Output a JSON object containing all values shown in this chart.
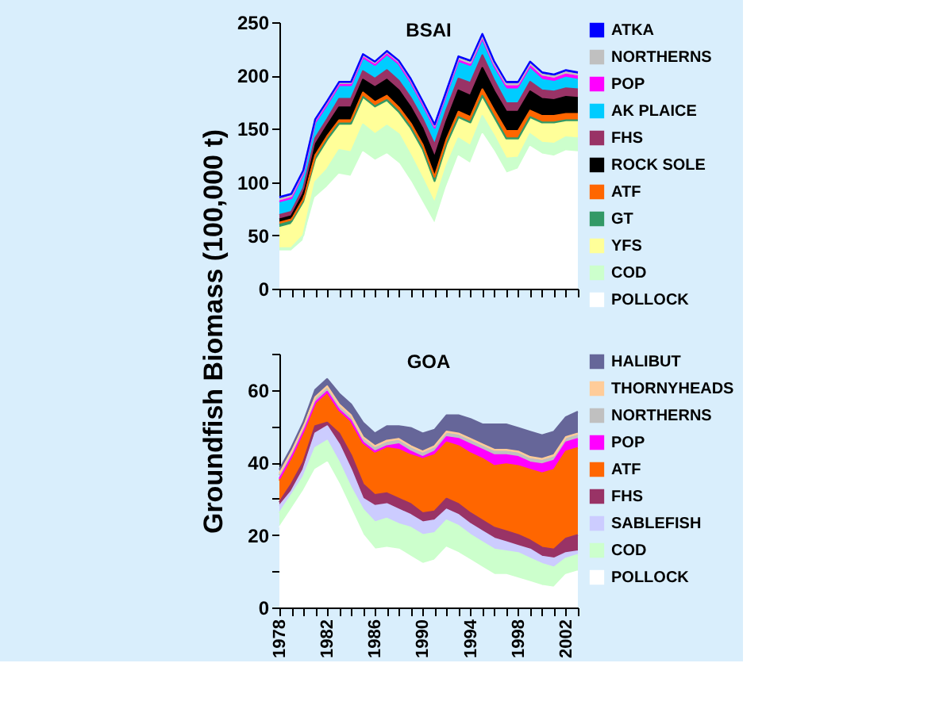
{
  "chart_data": [
    {
      "type": "area",
      "title": "BSAI",
      "ylabel": "Groundfish Biomass (100,000 t)",
      "stacked": true,
      "legend": "right",
      "grid": false,
      "tick_labels": "y",
      "x": [
        1978,
        1979,
        1980,
        1981,
        1982,
        1983,
        1984,
        1985,
        1986,
        1987,
        1988,
        1989,
        1990,
        1991,
        1992,
        1993,
        1994,
        1995,
        1996,
        1997,
        1998,
        1999,
        2000,
        2001,
        2002,
        2003
      ],
      "xlim": [
        1978,
        2003
      ],
      "xticks": [
        1978,
        {
          "value": 1979,
          "label": null
        },
        {
          "value": 1980,
          "label": null
        },
        {
          "value": 1981,
          "label": null
        },
        1982,
        {
          "value": 1983,
          "label": null
        },
        {
          "value": 1984,
          "label": null
        },
        {
          "value": 1985,
          "label": null
        },
        1986,
        {
          "value": 1987,
          "label": null
        },
        {
          "value": 1988,
          "label": null
        },
        {
          "value": 1989,
          "label": null
        },
        1990,
        {
          "value": 1991,
          "label": null
        },
        {
          "value": 1992,
          "label": null
        },
        {
          "value": 1993,
          "label": null
        },
        1994,
        {
          "value": 1995,
          "label": null
        },
        {
          "value": 1996,
          "label": null
        },
        {
          "value": 1997,
          "label": null
        },
        1998,
        {
          "value": 1999,
          "label": null
        },
        {
          "value": 2000,
          "label": null
        },
        {
          "value": 2001,
          "label": null
        },
        2002,
        {
          "value": 2003,
          "label": null
        }
      ],
      "ylim": [
        0,
        250
      ],
      "yticks": [
        0,
        50,
        100,
        150,
        200,
        250
      ],
      "series": [
        {
          "name": "POLLOCK",
          "color": "#ffffff",
          "values": [
            35,
            35,
            45,
            85,
            95,
            107,
            105,
            128,
            120,
            126,
            117,
            100,
            80,
            60,
            95,
            124,
            117,
            145,
            128,
            108,
            112,
            133,
            126,
            124,
            129,
            128
          ]
        },
        {
          "name": "COD",
          "color": "#ccffcc",
          "values": [
            3,
            3,
            5,
            15,
            17,
            23,
            23,
            26,
            25,
            27,
            28,
            25,
            23,
            20,
            20,
            17,
            17,
            17,
            15,
            14,
            11,
            12,
            11,
            12,
            13,
            13
          ]
        },
        {
          "name": "YFS",
          "color": "#ffff99",
          "values": [
            19,
            22,
            30,
            20,
            26,
            23,
            25,
            24,
            25,
            23,
            20,
            25,
            27,
            20,
            20,
            19,
            21,
            18,
            17,
            18,
            17,
            15,
            18,
            19,
            15,
            16
          ]
        },
        {
          "name": "GT",
          "color": "#339966",
          "values": [
            3,
            3,
            2,
            2,
            2,
            2,
            2,
            2,
            1,
            1,
            1,
            1,
            1,
            1,
            1,
            1,
            1,
            1,
            1,
            1,
            1,
            1,
            1,
            1,
            1,
            1
          ]
        },
        {
          "name": "ATF",
          "color": "#ff6600",
          "values": [
            2,
            2,
            2,
            3,
            3,
            3,
            3,
            4,
            4,
            4,
            4,
            4,
            4,
            4,
            4,
            5,
            5,
            6,
            6,
            7,
            7,
            6,
            6,
            6,
            6,
            6
          ]
        },
        {
          "name": "ROCK SOLE",
          "color": "#000000",
          "values": [
            3,
            3,
            5,
            10,
            10,
            12,
            12,
            12,
            14,
            15,
            16,
            15,
            15,
            18,
            17,
            20,
            20,
            20,
            18,
            18,
            18,
            18,
            16,
            15,
            16,
            15
          ]
        },
        {
          "name": "FHS",
          "color": "#993366",
          "values": [
            4,
            4,
            5,
            6,
            6,
            8,
            8,
            8,
            8,
            9,
            9,
            9,
            9,
            12,
            11,
            11,
            12,
            12,
            10,
            8,
            8,
            9,
            8,
            8,
            8,
            8
          ]
        },
        {
          "name": "AK PLAICE",
          "color": "#00ccff",
          "values": [
            12,
            12,
            13,
            14,
            13,
            12,
            12,
            12,
            12,
            14,
            15,
            14,
            13,
            15,
            14,
            15,
            15,
            14,
            12,
            13,
            13,
            12,
            10,
            9,
            10,
            9
          ]
        },
        {
          "name": "POP",
          "color": "#ff00ff",
          "values": [
            1,
            1,
            1,
            1,
            1,
            1,
            1,
            1,
            1,
            1,
            1,
            1,
            1,
            1,
            1,
            2,
            2,
            2,
            2,
            3,
            3,
            3,
            3,
            3,
            3,
            3
          ]
        },
        {
          "name": "NORTHERNS",
          "color": "#c0c0c0",
          "values": [
            2,
            2,
            2,
            2,
            2,
            2,
            2,
            2,
            2,
            2,
            2,
            2,
            2,
            2,
            2,
            2,
            2,
            2,
            2,
            2,
            2,
            2,
            2,
            2,
            2,
            2
          ]
        },
        {
          "name": "ATKA",
          "color": "#0000ff",
          "values": [
            2,
            2,
            1,
            1,
            1,
            1,
            1,
            1,
            1,
            1,
            1,
            1,
            1,
            1,
            1,
            2,
            2,
            2,
            2,
            2,
            2,
            2,
            2,
            2,
            2,
            2
          ]
        }
      ]
    },
    {
      "type": "area",
      "title": "GOA",
      "stacked": true,
      "legend": "right",
      "grid": false,
      "x": [
        1978,
        1979,
        1980,
        1981,
        1982,
        1983,
        1984,
        1985,
        1986,
        1987,
        1988,
        1989,
        1990,
        1991,
        1992,
        1993,
        1994,
        1995,
        1996,
        1997,
        1998,
        1999,
        2000,
        2001,
        2002,
        2003
      ],
      "xlim": [
        1978,
        2003
      ],
      "xticks": [
        1978,
        {
          "value": 1979,
          "label": null
        },
        {
          "value": 1980,
          "label": null
        },
        {
          "value": 1981,
          "label": null
        },
        1982,
        {
          "value": 1983,
          "label": null
        },
        {
          "value": 1984,
          "label": null
        },
        {
          "value": 1985,
          "label": null
        },
        1986,
        {
          "value": 1987,
          "label": null
        },
        {
          "value": 1988,
          "label": null
        },
        {
          "value": 1989,
          "label": null
        },
        1990,
        {
          "value": 1991,
          "label": null
        },
        {
          "value": 1992,
          "label": null
        },
        {
          "value": 1993,
          "label": null
        },
        1994,
        {
          "value": 1995,
          "label": null
        },
        {
          "value": 1996,
          "label": null
        },
        {
          "value": 1997,
          "label": null
        },
        1998,
        {
          "value": 1999,
          "label": null
        },
        {
          "value": 2000,
          "label": null
        },
        {
          "value": 2001,
          "label": null
        },
        2002,
        {
          "value": 2003,
          "label": null
        }
      ],
      "ylim": [
        0,
        70
      ],
      "yticks": [
        0,
        {
          "value": 10,
          "label": null
        },
        20,
        {
          "value": 30,
          "label": null
        },
        40,
        {
          "value": 50,
          "label": null
        },
        60,
        {
          "value": 70,
          "label": null
        }
      ],
      "series": [
        {
          "name": "POLLOCK",
          "color": "#ffffff",
          "values": [
            22,
            27,
            32,
            38,
            40,
            34,
            27,
            20,
            16,
            16.5,
            16,
            14,
            12,
            13,
            16.5,
            15,
            13,
            11,
            9,
            9,
            8,
            7,
            6,
            5.5,
            9,
            10
          ]
        },
        {
          "name": "COD",
          "color": "#ccffcc",
          "values": [
            4,
            4,
            4,
            6,
            6,
            6,
            6,
            7,
            7.5,
            8,
            7,
            8,
            8,
            7.5,
            7.5,
            7.5,
            7,
            7,
            7,
            6.5,
            7,
            6.5,
            6,
            5.5,
            4.5,
            4.5
          ]
        },
        {
          "name": "SABLEFISH",
          "color": "#ccccff",
          "values": [
            2,
            1,
            2,
            4,
            4,
            5,
            5,
            3,
            4.5,
            4,
            4,
            3.5,
            3.5,
            3.5,
            3,
            3,
            3,
            3,
            3,
            2.5,
            2,
            2.5,
            2,
            2.5,
            1.5,
            1
          ]
        },
        {
          "name": "FHS",
          "color": "#993366",
          "values": [
            1,
            2,
            2,
            2,
            1,
            3,
            4,
            4,
            3,
            3,
            3,
            3,
            2.5,
            2.5,
            3,
            3,
            3,
            3,
            3,
            3,
            3,
            2.5,
            2.5,
            2.5,
            4,
            4.5
          ]
        },
        {
          "name": "ATF",
          "color": "#ff6600",
          "values": [
            6,
            7,
            8,
            6,
            8,
            6,
            9,
            11,
            11.5,
            12.5,
            13.5,
            13.5,
            15,
            15.5,
            15.5,
            16,
            16.5,
            17,
            17,
            18.5,
            19,
            19.5,
            20.5,
            22,
            24,
            24
          ]
        },
        {
          "name": "POP",
          "color": "#ff00ff",
          "values": [
            0.5,
            0.5,
            0.5,
            0.5,
            0.5,
            0.5,
            0.5,
            0.5,
            0.5,
            0.5,
            1.5,
            1,
            0.5,
            1,
            1.5,
            2,
            2.5,
            2.5,
            3,
            2.5,
            2.5,
            2,
            2.5,
            2.5,
            2.5,
            2.5
          ]
        },
        {
          "name": "NORTHERNS",
          "color": "#c0c0c0",
          "values": [
            1,
            1,
            1,
            1,
            1,
            1,
            1,
            1,
            1,
            1,
            1,
            1,
            1,
            1,
            1,
            1,
            1,
            1,
            1,
            1,
            1,
            1,
            1,
            1,
            1,
            1
          ]
        },
        {
          "name": "THORNYHEADS",
          "color": "#ffcc99",
          "values": [
            0.5,
            0.5,
            0.5,
            0.5,
            0.5,
            0.5,
            0.5,
            0.5,
            0.5,
            0.5,
            0.5,
            0.5,
            0.5,
            0.5,
            0.5,
            0.5,
            0.5,
            0.5,
            0.5,
            0.5,
            0.5,
            0.5,
            0.5,
            0.5,
            0.5,
            0.5
          ]
        },
        {
          "name": "HALIBUT",
          "color": "#666699",
          "values": [
            1,
            1,
            1,
            2,
            2,
            3,
            3,
            4,
            3.5,
            4,
            3.5,
            5,
            5,
            4.5,
            4.5,
            5,
            5.5,
            5.5,
            7,
            7,
            6.5,
            7,
            6.5,
            6.5,
            5.5,
            6
          ]
        }
      ]
    }
  ]
}
